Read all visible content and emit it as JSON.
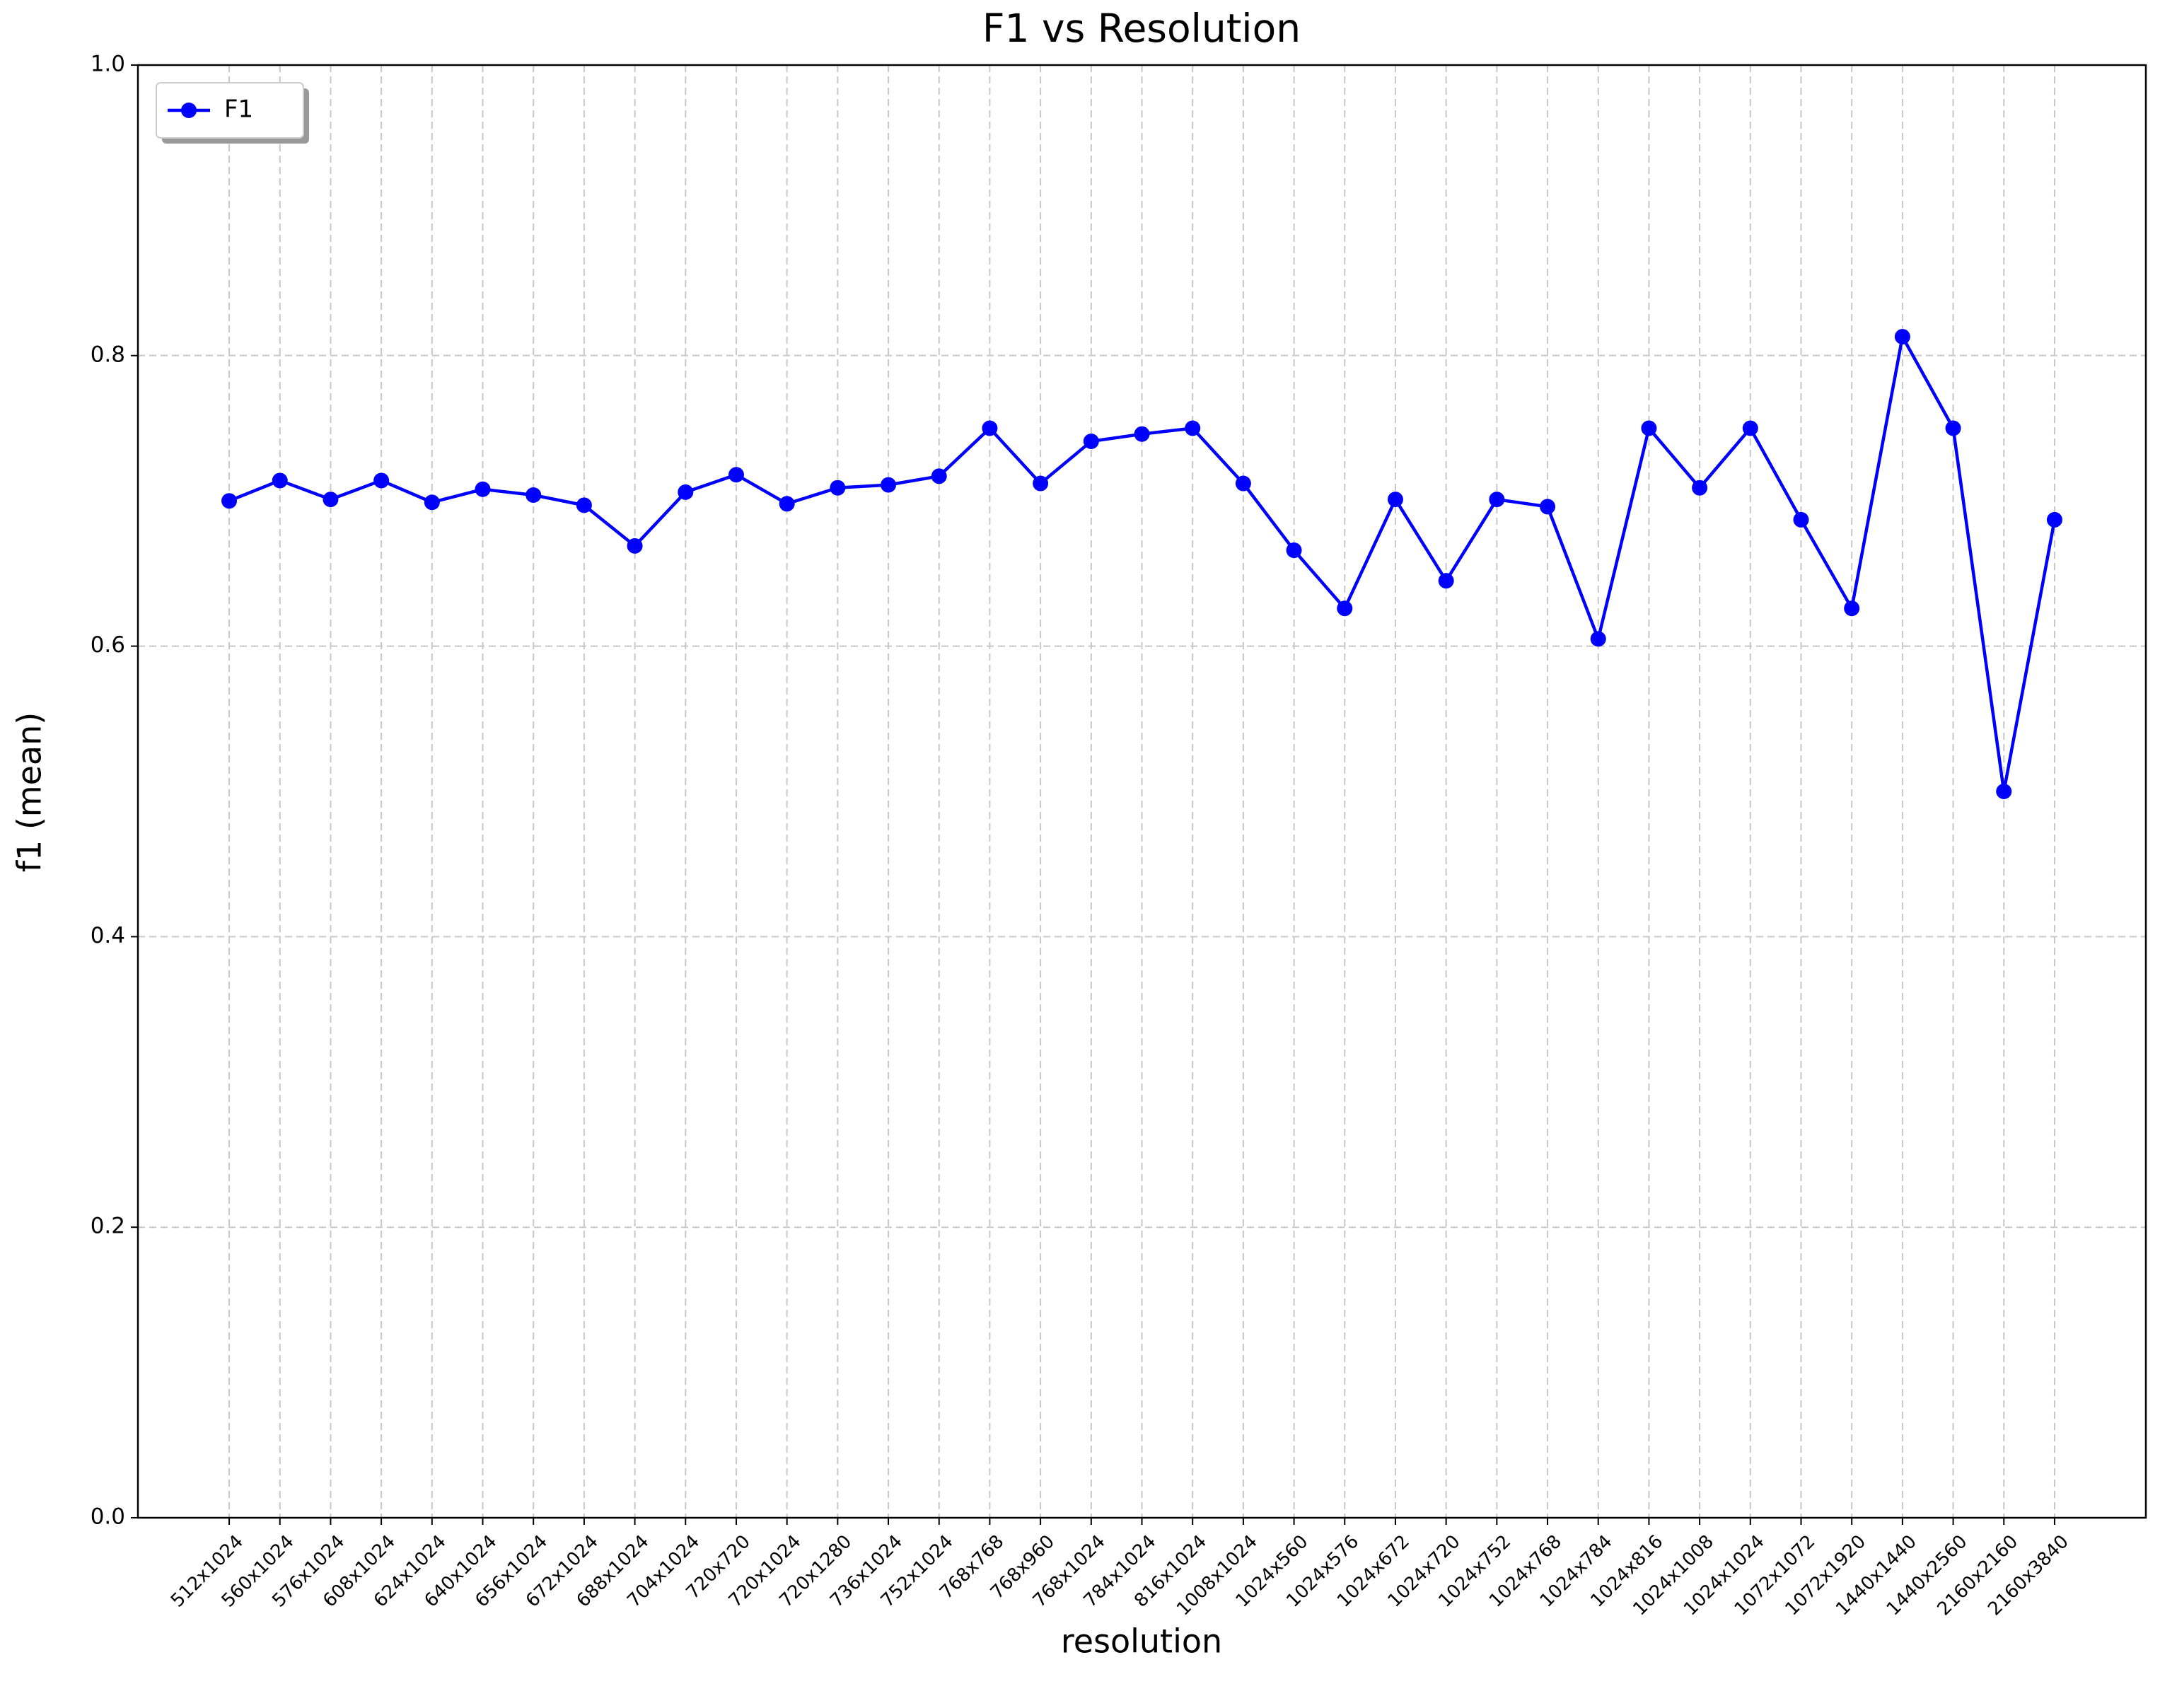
{
  "chart_data": {
    "type": "line",
    "title": "F1 vs Resolution",
    "x_label": "resolution",
    "y_label": "f1 (mean)",
    "categories": [
      "512x1024",
      "560x1024",
      "576x1024",
      "608x1024",
      "624x1024",
      "640x1024",
      "656x1024",
      "672x1024",
      "688x1024",
      "704x1024",
      "720x720",
      "720x1024",
      "720x1280",
      "736x1024",
      "752x1024",
      "768x768",
      "768x960",
      "768x1024",
      "784x1024",
      "816x1024",
      "1008x1024",
      "1024x560",
      "1024x576",
      "1024x672",
      "1024x720",
      "1024x752",
      "1024x768",
      "1024x784",
      "1024x816",
      "1024x1008",
      "1024x1024",
      "1072x1072",
      "1072x1920",
      "1440x1440",
      "1440x2560",
      "2160x2160",
      "2160x3840"
    ],
    "series": [
      {
        "name": "F1",
        "color": "#0000ff",
        "values": [
          0.7,
          0.714,
          0.701,
          0.714,
          0.699,
          0.708,
          0.704,
          0.697,
          0.669,
          0.706,
          0.718,
          0.698,
          0.709,
          0.711,
          0.717,
          0.75,
          0.712,
          0.741,
          0.746,
          0.75,
          0.712,
          0.666,
          0.626,
          0.701,
          0.645,
          0.701,
          0.696,
          0.605,
          0.75,
          0.709,
          0.75,
          0.687,
          0.626,
          0.813,
          0.75,
          0.5,
          0.687
        ]
      }
    ],
    "ylim": [
      0,
      1
    ],
    "yticks": [
      {
        "value": 0,
        "label": "0.0"
      },
      0.2,
      0.4,
      0.6,
      0.8,
      {
        "value": 1,
        "label": "1.0"
      }
    ],
    "grid": true,
    "legend": "upper-left"
  }
}
